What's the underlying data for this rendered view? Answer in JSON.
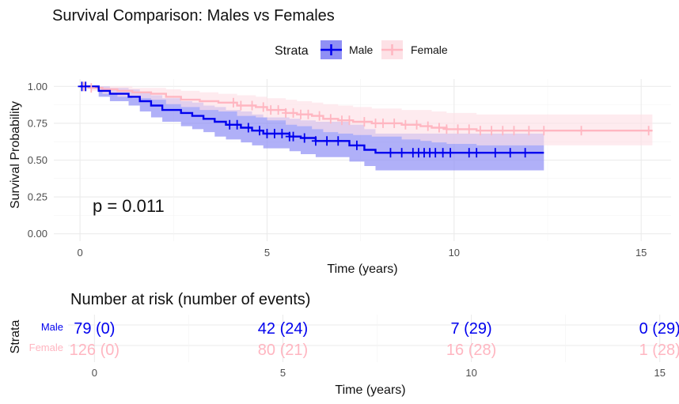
{
  "colors": {
    "male": "#0000ee",
    "female": "#ffb6c1",
    "male_band": "#8f8ff5",
    "female_band": "#fde1e6"
  },
  "chart_data": [
    {
      "type": "line",
      "subtype": "kaplan-meier",
      "title": "Survival Comparison: Males vs Females",
      "xlabel": "Time (years)",
      "ylabel": "Survival Probability",
      "xlim": [
        -0.7,
        15.8
      ],
      "ylim": [
        -0.05,
        1.05
      ],
      "xticks": [
        0,
        5,
        10,
        15
      ],
      "xtick_labels": [
        "0",
        "5",
        "10",
        "15"
      ],
      "yticks": [
        0,
        0.25,
        0.5,
        0.75,
        1
      ],
      "ytick_labels": [
        "0.00",
        "0.25",
        "0.50",
        "0.75",
        "1.00"
      ],
      "grid": true,
      "legend": {
        "title": "Strata",
        "position": "top",
        "entries": [
          "Male",
          "Female"
        ]
      },
      "annotation": "p = 0.011",
      "series": [
        {
          "name": "Male",
          "steps": [
            [
              0,
              1.0
            ],
            [
              0.5,
              0.97
            ],
            [
              0.8,
              0.95
            ],
            [
              1.3,
              0.93
            ],
            [
              1.6,
              0.9
            ],
            [
              1.9,
              0.87
            ],
            [
              2.2,
              0.84
            ],
            [
              2.7,
              0.82
            ],
            [
              3.0,
              0.8
            ],
            [
              3.3,
              0.78
            ],
            [
              3.6,
              0.76
            ],
            [
              3.9,
              0.74
            ],
            [
              4.3,
              0.72
            ],
            [
              4.6,
              0.7
            ],
            [
              4.9,
              0.68
            ],
            [
              5.6,
              0.66
            ],
            [
              5.9,
              0.65
            ],
            [
              6.3,
              0.63
            ],
            [
              7.2,
              0.6
            ],
            [
              7.6,
              0.57
            ],
            [
              7.9,
              0.55
            ],
            [
              12.4,
              0.55
            ]
          ],
          "ci_upper": [
            [
              0,
              1.0
            ],
            [
              0.5,
              1.0
            ],
            [
              0.8,
              0.99
            ],
            [
              1.3,
              0.98
            ],
            [
              1.6,
              0.96
            ],
            [
              1.9,
              0.94
            ],
            [
              2.2,
              0.92
            ],
            [
              2.7,
              0.9
            ],
            [
              3.0,
              0.89
            ],
            [
              3.3,
              0.87
            ],
            [
              3.6,
              0.86
            ],
            [
              3.9,
              0.84
            ],
            [
              4.3,
              0.83
            ],
            [
              4.6,
              0.81
            ],
            [
              4.9,
              0.79
            ],
            [
              5.6,
              0.78
            ],
            [
              5.9,
              0.77
            ],
            [
              6.3,
              0.76
            ],
            [
              7.2,
              0.74
            ],
            [
              7.6,
              0.71
            ],
            [
              7.9,
              0.68
            ],
            [
              12.4,
              0.68
            ]
          ],
          "ci_lower": [
            [
              0,
              1.0
            ],
            [
              0.5,
              0.93
            ],
            [
              0.8,
              0.9
            ],
            [
              1.3,
              0.87
            ],
            [
              1.6,
              0.83
            ],
            [
              1.9,
              0.79
            ],
            [
              2.2,
              0.76
            ],
            [
              2.7,
              0.73
            ],
            [
              3.0,
              0.71
            ],
            [
              3.3,
              0.69
            ],
            [
              3.6,
              0.66
            ],
            [
              3.9,
              0.64
            ],
            [
              4.3,
              0.62
            ],
            [
              4.6,
              0.6
            ],
            [
              4.9,
              0.58
            ],
            [
              5.6,
              0.56
            ],
            [
              5.9,
              0.54
            ],
            [
              6.3,
              0.52
            ],
            [
              7.2,
              0.49
            ],
            [
              7.6,
              0.46
            ],
            [
              7.9,
              0.43
            ],
            [
              12.4,
              0.43
            ]
          ],
          "censor_times": [
            0.05,
            0.15,
            4.0,
            4.2,
            4.5,
            4.8,
            5.0,
            5.2,
            5.4,
            5.6,
            5.7,
            6.0,
            6.3,
            6.6,
            6.9,
            7.4,
            8.3,
            8.6,
            8.9,
            9.05,
            9.2,
            9.35,
            9.5,
            9.7,
            9.9,
            10.4,
            10.6,
            11.1,
            11.5,
            11.9
          ]
        },
        {
          "name": "Female",
          "steps": [
            [
              0,
              1.0
            ],
            [
              0.3,
              0.99
            ],
            [
              0.6,
              0.98
            ],
            [
              1.0,
              0.97
            ],
            [
              1.4,
              0.96
            ],
            [
              1.9,
              0.95
            ],
            [
              2.3,
              0.93
            ],
            [
              2.7,
              0.91
            ],
            [
              3.2,
              0.9
            ],
            [
              3.7,
              0.89
            ],
            [
              4.2,
              0.87
            ],
            [
              4.7,
              0.86
            ],
            [
              5.0,
              0.84
            ],
            [
              5.5,
              0.82
            ],
            [
              5.8,
              0.81
            ],
            [
              6.2,
              0.8
            ],
            [
              6.5,
              0.78
            ],
            [
              6.9,
              0.77
            ],
            [
              7.3,
              0.76
            ],
            [
              7.8,
              0.75
            ],
            [
              8.6,
              0.74
            ],
            [
              9.1,
              0.73
            ],
            [
              9.4,
              0.72
            ],
            [
              9.8,
              0.71
            ],
            [
              10.6,
              0.7
            ],
            [
              15.3,
              0.7
            ]
          ],
          "ci_upper": [
            [
              0,
              1.0
            ],
            [
              0.3,
              1.0
            ],
            [
              0.6,
              1.0
            ],
            [
              1.0,
              1.0
            ],
            [
              1.4,
              0.99
            ],
            [
              1.9,
              0.99
            ],
            [
              2.3,
              0.98
            ],
            [
              2.7,
              0.97
            ],
            [
              3.2,
              0.96
            ],
            [
              3.7,
              0.95
            ],
            [
              4.2,
              0.94
            ],
            [
              4.7,
              0.93
            ],
            [
              5.0,
              0.92
            ],
            [
              5.5,
              0.91
            ],
            [
              5.8,
              0.9
            ],
            [
              6.2,
              0.89
            ],
            [
              6.5,
              0.88
            ],
            [
              6.9,
              0.87
            ],
            [
              7.3,
              0.86
            ],
            [
              7.8,
              0.85
            ],
            [
              8.6,
              0.84
            ],
            [
              9.1,
              0.84
            ],
            [
              9.4,
              0.83
            ],
            [
              9.8,
              0.82
            ],
            [
              10.6,
              0.81
            ],
            [
              15.3,
              0.81
            ]
          ],
          "ci_lower": [
            [
              0,
              1.0
            ],
            [
              0.3,
              0.97
            ],
            [
              0.6,
              0.95
            ],
            [
              1.0,
              0.93
            ],
            [
              1.4,
              0.92
            ],
            [
              1.9,
              0.91
            ],
            [
              2.3,
              0.88
            ],
            [
              2.7,
              0.86
            ],
            [
              3.2,
              0.84
            ],
            [
              3.7,
              0.83
            ],
            [
              4.2,
              0.8
            ],
            [
              4.7,
              0.79
            ],
            [
              5.0,
              0.77
            ],
            [
              5.5,
              0.74
            ],
            [
              5.8,
              0.73
            ],
            [
              6.2,
              0.71
            ],
            [
              6.5,
              0.69
            ],
            [
              6.9,
              0.68
            ],
            [
              7.3,
              0.67
            ],
            [
              7.8,
              0.66
            ],
            [
              8.6,
              0.64
            ],
            [
              9.1,
              0.63
            ],
            [
              9.4,
              0.62
            ],
            [
              9.8,
              0.61
            ],
            [
              10.6,
              0.6
            ],
            [
              15.3,
              0.6
            ]
          ],
          "censor_times": [
            0.1,
            0.3,
            4.1,
            4.3,
            4.6,
            4.9,
            5.1,
            5.3,
            5.5,
            5.7,
            5.9,
            6.1,
            6.4,
            6.7,
            7.0,
            7.2,
            7.6,
            7.9,
            8.1,
            8.4,
            8.7,
            9.0,
            9.3,
            9.6,
            9.8,
            10.1,
            10.4,
            10.7,
            11.0,
            11.3,
            11.6,
            12.0,
            12.4,
            13.4,
            15.2
          ]
        }
      ]
    },
    {
      "type": "table",
      "title": "Number at risk (number of events)",
      "xlabel": "Time (years)",
      "ylabel": "Strata",
      "xticks": [
        0,
        5,
        10,
        15
      ],
      "xtick_labels": [
        "0",
        "5",
        "10",
        "15"
      ],
      "rows": [
        {
          "name": "Male",
          "values": [
            "79 (0)",
            "42 (24)",
            "7 (29)",
            "0 (29)"
          ]
        },
        {
          "name": "Female",
          "values": [
            "126 (0)",
            "80 (21)",
            "16 (28)",
            "1 (28)"
          ]
        }
      ]
    }
  ]
}
